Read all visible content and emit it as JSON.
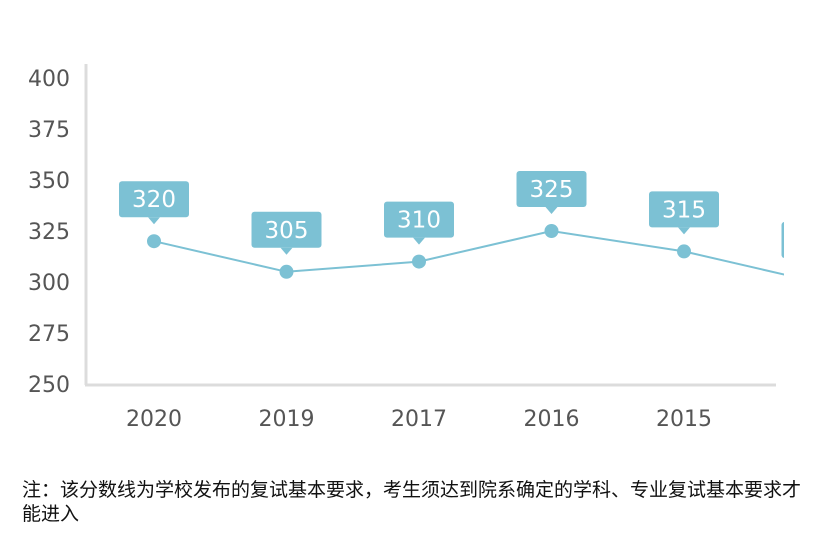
{
  "chart_data": {
    "type": "line",
    "categories": [
      "2020",
      "2019",
      "2017",
      "2016",
      "2015",
      ""
    ],
    "values": [
      320,
      305,
      310,
      325,
      315,
      300
    ],
    "data_labels": [
      "320",
      "305",
      "310",
      "325",
      "315",
      ""
    ],
    "y_ticks": [
      "400",
      "375",
      "350",
      "325",
      "300",
      "275",
      "250"
    ],
    "ylim": [
      250,
      400
    ],
    "grid": false,
    "colors": {
      "line": "#7cc1d4",
      "label_bg": "#7cc1d4",
      "label_text": "#ffffff",
      "axis": "#dcdcdc",
      "tick_text": "#555555"
    }
  },
  "note": {
    "text": "注：该分数线为学校发布的复试基本要求，考生须达到院系确定的学科、专业复试基本要求才能进入"
  }
}
